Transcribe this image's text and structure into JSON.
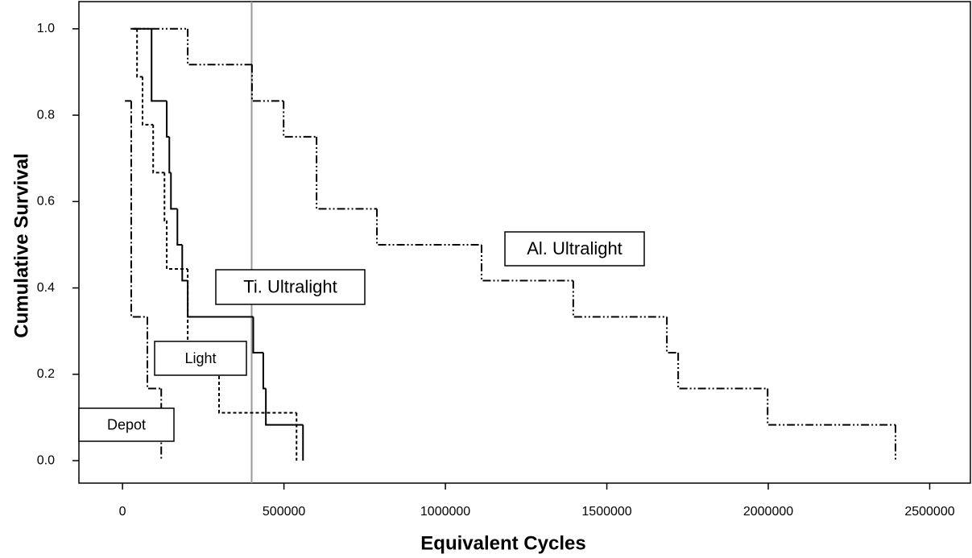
{
  "chart_data": {
    "type": "step",
    "xlabel": "Equivalent Cycles",
    "ylabel": "Cumulative Survival",
    "xlim": [
      -135000,
      2626000
    ],
    "ylim": [
      -0.052,
      1.063
    ],
    "xticks": [
      0,
      500000,
      1000000,
      1500000,
      2000000,
      2500000
    ],
    "yticks": [
      {
        "value": 0,
        "label": "0.0"
      },
      0.2,
      0.4,
      0.6,
      0.8,
      {
        "value": 1,
        "label": "1.0"
      }
    ],
    "vline": {
      "x": 400000,
      "color": "#999999"
    },
    "series": [
      {
        "name": "Ti. Ultralight",
        "color": "#000000",
        "dash": "none",
        "x": [
          25000,
          90000,
          137000,
          145000,
          150000,
          170000,
          185000,
          202000,
          405000,
          436000,
          444000,
          559000
        ],
        "values": [
          1,
          0.833,
          0.75,
          0.667,
          0.583,
          0.5,
          0.417,
          0.333,
          0.25,
          0.167,
          0.083,
          0
        ]
      },
      {
        "name": "Al. Ultralight",
        "color": "#000000",
        "dash": "10 3 2 3 2 3",
        "x": [
          32000,
          202000,
          401000,
          499000,
          601000,
          788000,
          1112000,
          1396000,
          1686000,
          1721000,
          1998000,
          2394000
        ],
        "values": [
          1,
          0.917,
          0.833,
          0.75,
          0.583,
          0.5,
          0.417,
          0.333,
          0.25,
          0.167,
          0.083,
          0
        ]
      },
      {
        "name": "Light",
        "color": "#000000",
        "dash": "4 3",
        "x": [
          32000,
          45000,
          62000,
          95000,
          130000,
          137000,
          202000,
          299000,
          539000
        ],
        "values": [
          1,
          0.889,
          0.778,
          0.667,
          0.556,
          0.444,
          0.222,
          0.111,
          0
        ]
      },
      {
        "name": "Depot",
        "color": "#000000",
        "dash": "10 3 2 3",
        "x": [
          7500,
          27000,
          77000,
          120000
        ],
        "values": [
          0.833,
          0.333,
          0.167,
          0
        ]
      }
    ]
  }
}
